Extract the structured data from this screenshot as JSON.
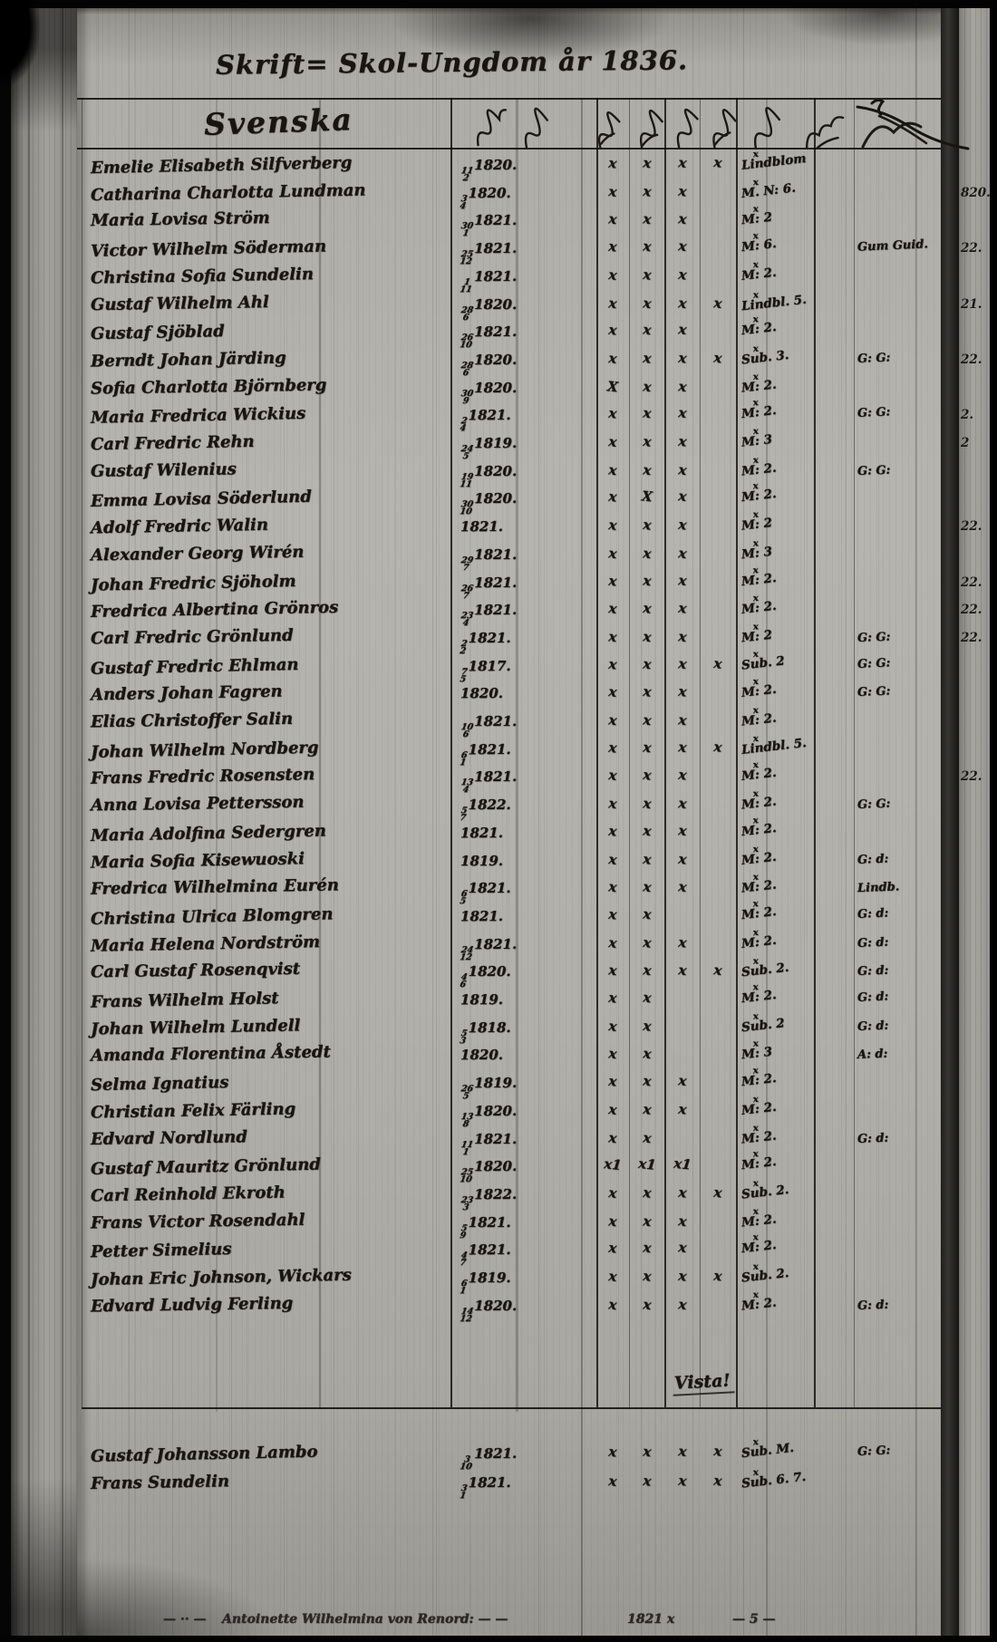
{
  "page": {
    "title": "Skrift= Skol-Ungdom år 1836.",
    "section": "Svenska",
    "vide_note": "Vista!",
    "glyphs": {
      "grade_sup": "x"
    },
    "footer": {
      "prefix": "— ·· —",
      "name_text": "Antoinette Wilhelmina von Renord: — —",
      "right_a": "1821 x",
      "right_b": "— 5 —"
    }
  },
  "rows": [
    {
      "name": "Emelie Elisabeth Silfverberg",
      "day_month": "11/2",
      "year": "1820.",
      "marks": [
        "x",
        "x",
        "x",
        "x"
      ],
      "grade": "Lindblom",
      "margin_note": "",
      "edge_note": ""
    },
    {
      "name": "Catharina Charlotta Lundman",
      "day_month": "3/4",
      "year": "1820.",
      "marks": [
        "x",
        "x",
        "x"
      ],
      "grade": "M. N: 6.",
      "margin_note": "",
      "edge_note": "820."
    },
    {
      "name": "Maria Lovisa Ström",
      "day_month": "30/1",
      "year": "1821.",
      "marks": [
        "x",
        "x",
        "x"
      ],
      "grade": "M: 2",
      "margin_note": "",
      "edge_note": ""
    },
    {
      "name": "Victor Wilhelm Söderman",
      "day_month": "25/12",
      "year": "1821.",
      "marks": [
        "x",
        "x",
        "x"
      ],
      "grade": "M: 6.",
      "margin_note": "Gum Guid.",
      "edge_note": "22."
    },
    {
      "name": "Christina Sofia Sundelin",
      "day_month": "1/11",
      "year": "1821.",
      "marks": [
        "x",
        "x",
        "x"
      ],
      "grade": "M: 2.",
      "margin_note": "",
      "edge_note": ""
    },
    {
      "name": "Gustaf Wilhelm Ahl",
      "day_month": "28/6",
      "year": "1820.",
      "marks": [
        "x",
        "x",
        "x",
        "x"
      ],
      "grade": "Lindbl. 5.",
      "margin_note": "",
      "edge_note": "21."
    },
    {
      "name": "Gustaf Sjöblad",
      "day_month": "26/10",
      "year": "1821.",
      "marks": [
        "x",
        "x",
        "x"
      ],
      "grade": "M: 2.",
      "margin_note": "",
      "edge_note": ""
    },
    {
      "name": "Berndt Johan Järding",
      "day_month": "28/6",
      "year": "1820.",
      "marks": [
        "x",
        "x",
        "x",
        "x"
      ],
      "grade": "Sub. 3.",
      "margin_note": "G: G:",
      "edge_note": "22."
    },
    {
      "name": "Sofia Charlotta Björnberg",
      "day_month": "30/9",
      "year": "1820.",
      "marks": [
        "X",
        "x",
        "x"
      ],
      "grade": "M: 2.",
      "margin_note": "",
      "edge_note": ""
    },
    {
      "name": "Maria Fredrica Wickius",
      "day_month": "2/4",
      "year": "1821.",
      "marks": [
        "x",
        "x",
        "x"
      ],
      "grade": "M: 2.",
      "margin_note": "G: G:",
      "edge_note": "2."
    },
    {
      "name": "Carl Fredric Rehn",
      "day_month": "24/5",
      "year": "1819.",
      "marks": [
        "x",
        "x",
        "x"
      ],
      "grade": "M: 3",
      "margin_note": "",
      "edge_note": "2"
    },
    {
      "name": "Gustaf Wilenius",
      "day_month": "19/11",
      "year": "1820.",
      "marks": [
        "x",
        "x",
        "x"
      ],
      "grade": "M: 2.",
      "margin_note": "G: G:",
      "edge_note": ""
    },
    {
      "name": "Emma Lovisa Söderlund",
      "day_month": "30/10",
      "year": "1820.",
      "marks": [
        "x",
        "X",
        "x"
      ],
      "grade": "M: 2.",
      "margin_note": "",
      "edge_note": ""
    },
    {
      "name": "Adolf Fredric Walin",
      "day_month": "",
      "year": "1821.",
      "marks": [
        "x",
        "x",
        "x"
      ],
      "grade": "M: 2",
      "margin_note": "",
      "edge_note": "22."
    },
    {
      "name": "Alexander Georg Wirén",
      "day_month": "29/7",
      "year": "1821.",
      "marks": [
        "x",
        "x",
        "x"
      ],
      "grade": "M: 3",
      "margin_note": "",
      "edge_note": ""
    },
    {
      "name": "Johan Fredric Sjöholm",
      "day_month": "26/7",
      "year": "1821.",
      "marks": [
        "x",
        "x",
        "x"
      ],
      "grade": "M: 2.",
      "margin_note": "",
      "edge_note": "22."
    },
    {
      "name": "Fredrica Albertina Grönros",
      "day_month": "23/4",
      "year": "1821.",
      "marks": [
        "x",
        "x",
        "x"
      ],
      "grade": "M: 2.",
      "margin_note": "",
      "edge_note": "22."
    },
    {
      "name": "Carl Fredric Grönlund",
      "day_month": "2/2",
      "year": "1821.",
      "marks": [
        "x",
        "x",
        "x"
      ],
      "grade": "M: 2",
      "margin_note": "G: G:",
      "edge_note": "22."
    },
    {
      "name": "Gustaf Fredric Ehlman",
      "day_month": "7/5",
      "year": "1817.",
      "marks": [
        "x",
        "x",
        "x",
        "x"
      ],
      "grade": "Sub. 2",
      "margin_note": "G: G:",
      "edge_note": ""
    },
    {
      "name": "Anders Johan Fagren",
      "day_month": "",
      "year": "1820.",
      "marks": [
        "x",
        "x",
        "x"
      ],
      "grade": "M: 2.",
      "margin_note": "G: G:",
      "edge_note": ""
    },
    {
      "name": "Elias Christoffer Salin",
      "day_month": "10/6",
      "year": "1821.",
      "marks": [
        "x",
        "x",
        "x"
      ],
      "grade": "M: 2.",
      "margin_note": "",
      "edge_note": ""
    },
    {
      "name": "Johan Wilhelm Nordberg",
      "day_month": "6/1",
      "year": "1821.",
      "marks": [
        "x",
        "x",
        "x",
        "x"
      ],
      "grade": "Lindbl. 5.",
      "margin_note": "",
      "edge_note": ""
    },
    {
      "name": "Frans Fredric Rosensten",
      "day_month": "13/4",
      "year": "1821.",
      "marks": [
        "x",
        "x",
        "x"
      ],
      "grade": "M: 2.",
      "margin_note": "",
      "edge_note": "22."
    },
    {
      "name": "Anna Lovisa Pettersson",
      "day_month": "5/7",
      "year": "1822.",
      "marks": [
        "x",
        "x",
        "x"
      ],
      "grade": "M: 2.",
      "margin_note": "G: G:",
      "edge_note": ""
    },
    {
      "name": "Maria Adolfina Sedergren",
      "day_month": "",
      "year": "1821.",
      "marks": [
        "x",
        "x",
        "x"
      ],
      "grade": "M: 2.",
      "margin_note": "",
      "edge_note": ""
    },
    {
      "name": "Maria Sofia Kisewuoski",
      "day_month": "",
      "year": "1819.",
      "marks": [
        "x",
        "x",
        "x"
      ],
      "grade": "M: 2.",
      "margin_note": "G: d:",
      "edge_note": ""
    },
    {
      "name": "Fredrica Wilhelmina Eurén",
      "day_month": "6/5",
      "year": "1821.",
      "marks": [
        "x",
        "x",
        "x"
      ],
      "grade": "M: 2.",
      "margin_note": "Lindb.",
      "edge_note": ""
    },
    {
      "name": "Christina Ulrica Blomgren",
      "day_month": "",
      "year": "1821.",
      "marks": [
        "x",
        "x"
      ],
      "grade": "M: 2.",
      "margin_note": "G: d:",
      "edge_note": ""
    },
    {
      "name": "Maria Helena Nordström",
      "day_month": "24/12",
      "year": "1821.",
      "marks": [
        "x",
        "x",
        "x"
      ],
      "grade": "M: 2.",
      "margin_note": "G: d:",
      "edge_note": ""
    },
    {
      "name": "Carl Gustaf Rosenqvist",
      "day_month": "4/6",
      "year": "1820.",
      "marks": [
        "x",
        "x",
        "x",
        "x"
      ],
      "grade": "Sub. 2.",
      "margin_note": "G: d:",
      "edge_note": ""
    },
    {
      "name": "Frans Wilhelm Holst",
      "day_month": "",
      "year": "1819.",
      "marks": [
        "x",
        "x"
      ],
      "grade": "M: 2.",
      "margin_note": "G: d:",
      "edge_note": ""
    },
    {
      "name": "Johan Wilhelm Lundell",
      "day_month": "5/3",
      "year": "1818.",
      "marks": [
        "x",
        "x"
      ],
      "grade": "Sub. 2",
      "margin_note": "G: d:",
      "edge_note": ""
    },
    {
      "name": "Amanda Florentina Åstedt",
      "day_month": "",
      "year": "1820.",
      "marks": [
        "x",
        "x"
      ],
      "grade": "M: 3",
      "margin_note": "A: d:",
      "edge_note": ""
    },
    {
      "name": "Selma Ignatius",
      "day_month": "26/5",
      "year": "1819.",
      "marks": [
        "x",
        "x",
        "x"
      ],
      "grade": "M: 2.",
      "margin_note": "",
      "edge_note": ""
    },
    {
      "name": "Christian Felix Färling",
      "day_month": "13/8",
      "year": "1820.",
      "marks": [
        "x",
        "x",
        "x"
      ],
      "grade": "M: 2.",
      "margin_note": "",
      "edge_note": ""
    },
    {
      "name": "Edvard Nordlund",
      "day_month": "11/1",
      "year": "1821.",
      "marks": [
        "x",
        "x"
      ],
      "grade": "M: 2.",
      "margin_note": "G: d:",
      "edge_note": ""
    },
    {
      "name": "Gustaf Mauritz Grönlund",
      "day_month": "25/10",
      "year": "1820.",
      "marks": [
        "x1",
        "x1",
        "x1"
      ],
      "grade": "M: 2.",
      "margin_note": "",
      "edge_note": ""
    },
    {
      "name": "Carl Reinhold Ekroth",
      "day_month": "23/3",
      "year": "1822.",
      "marks": [
        "x",
        "x",
        "x",
        "x"
      ],
      "grade": "Sub. 2.",
      "margin_note": "",
      "edge_note": ""
    },
    {
      "name": "Frans Victor Rosendahl",
      "day_month": "5/9",
      "year": "1821.",
      "marks": [
        "x",
        "x",
        "x"
      ],
      "grade": "M: 2.",
      "margin_note": "",
      "edge_note": ""
    },
    {
      "name": "Petter Simelius",
      "day_month": "4/7",
      "year": "1821.",
      "marks": [
        "x",
        "x",
        "x"
      ],
      "grade": "M: 2.",
      "margin_note": "",
      "edge_note": ""
    },
    {
      "name": "Johan Eric Johnson, Wickars",
      "day_month": "6/1",
      "year": "1819.",
      "marks": [
        "x",
        "x",
        "x",
        "x"
      ],
      "grade": "Sub. 2.",
      "margin_note": "",
      "edge_note": ""
    },
    {
      "name": "Edvard Ludvig Ferling",
      "day_month": "14/12",
      "year": "1820.",
      "marks": [
        "x",
        "x",
        "x"
      ],
      "grade": "M: 2.",
      "margin_note": "G: d:",
      "edge_note": ""
    }
  ],
  "extra_rows": [
    {
      "name": "Gustaf Johansson Lambo",
      "day_month": "3/10",
      "year": "1821.",
      "marks": [
        "x",
        "x",
        "x",
        "x"
      ],
      "grade": "Sub. M.",
      "margin_note": "G: G:",
      "edge_note": ""
    },
    {
      "name": "Frans Sundelin",
      "day_month": "3/1",
      "year": "1821.",
      "marks": [
        "x",
        "x",
        "x",
        "x"
      ],
      "grade": "Sub. 6. 7.",
      "margin_note": "",
      "edge_note": ""
    }
  ]
}
